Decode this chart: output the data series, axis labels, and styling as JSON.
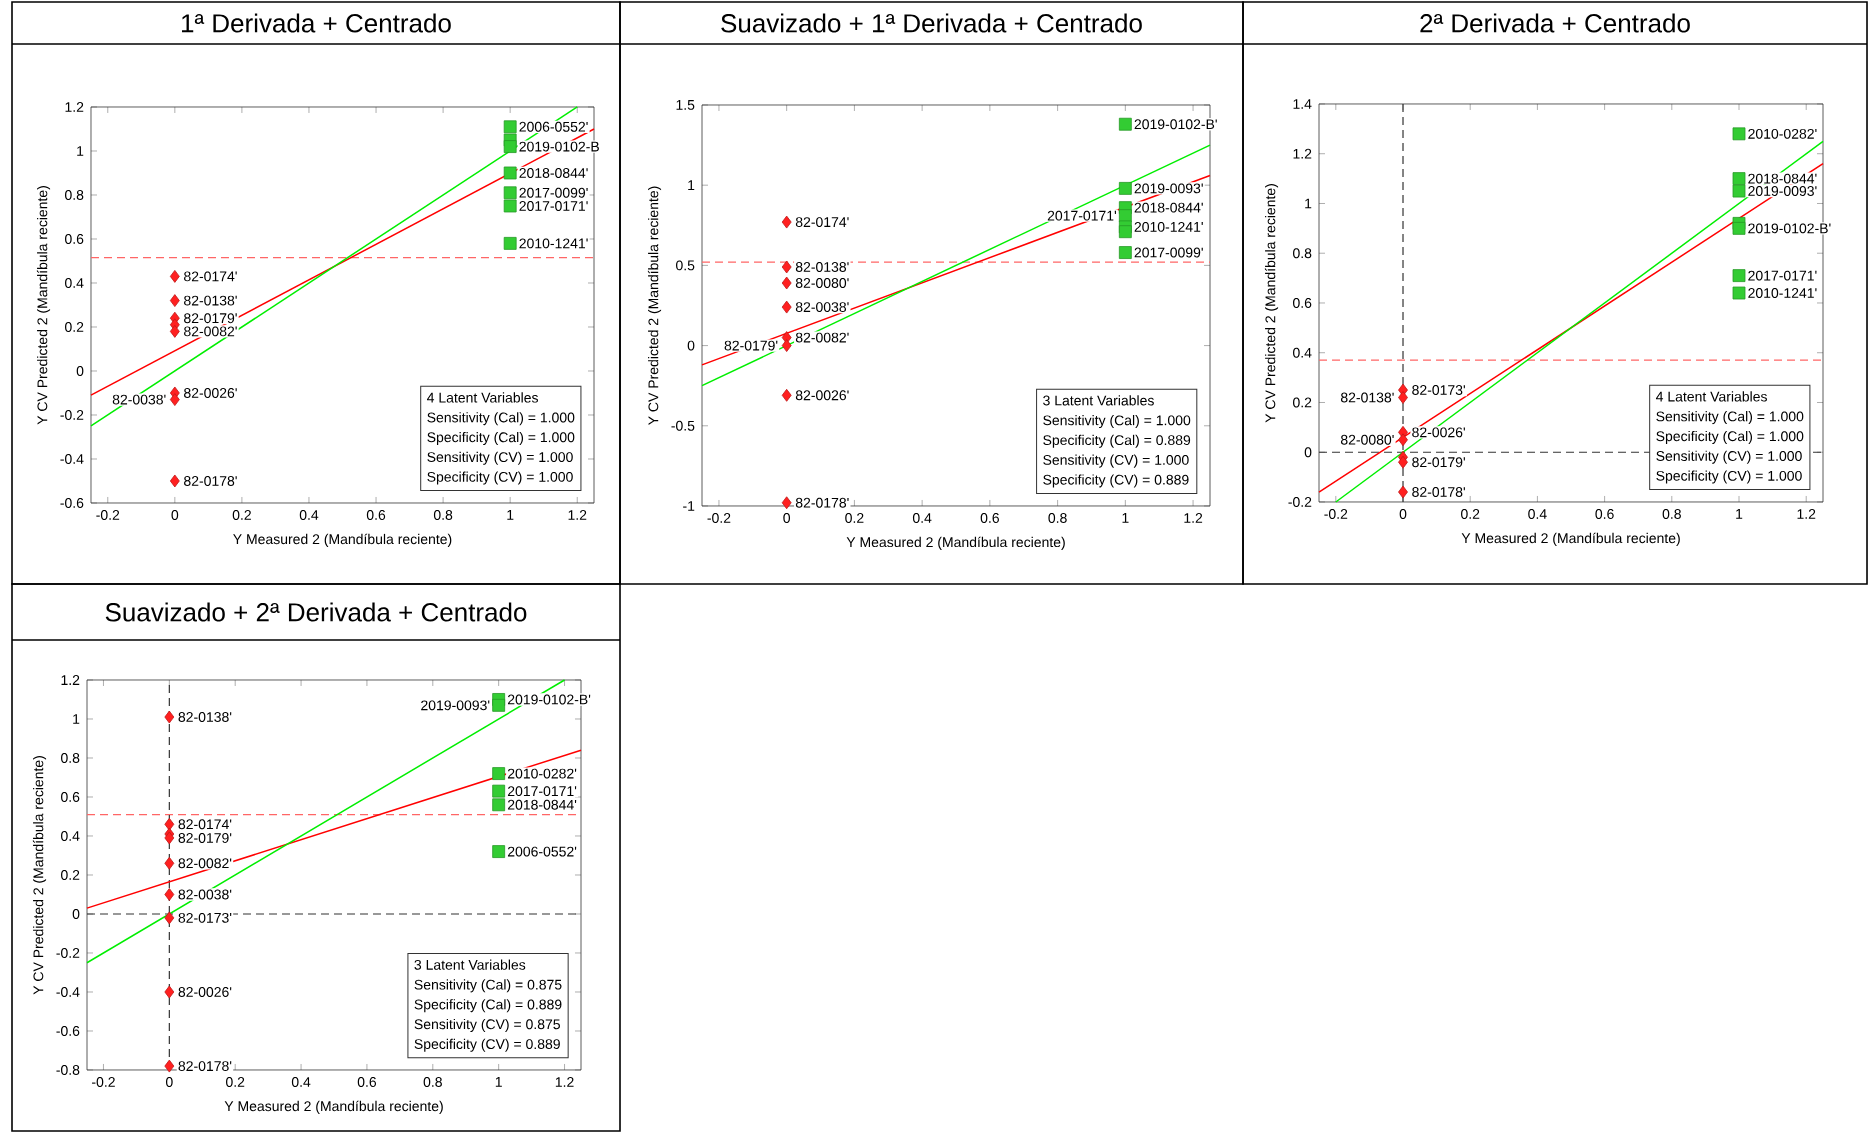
{
  "chart_data": [
    {
      "type": "scatter",
      "title": "1ª Derivada + Centrado",
      "xlabel": "Y Measured 2 (Mandíbula reciente)",
      "ylabel": "Y CV Predicted 2 (Mandíbula reciente)",
      "xlim": [
        -0.25,
        1.25
      ],
      "xticks": [
        -0.2,
        0,
        0.2,
        0.4,
        0.6,
        0.8,
        1,
        1.2
      ],
      "ylim": [
        -0.6,
        1.2
      ],
      "yticks": [
        -0.6,
        -0.4,
        -0.2,
        0,
        0.2,
        0.4,
        0.6,
        0.8,
        1,
        1.2
      ],
      "series": [
        {
          "type": "scatter",
          "marker": "diamond",
          "color": "#ff2020",
          "x": [
            0,
            0,
            0,
            0,
            0,
            0,
            0,
            0
          ],
          "values": [
            0.43,
            0.32,
            0.24,
            0.21,
            0.18,
            -0.1,
            -0.13,
            -0.5
          ],
          "value_labels": [
            "82-0174'",
            "82-0138'",
            "82-0179'",
            null,
            "82-0082'",
            "82-0026'",
            "82-0038'",
            "82-0178'"
          ]
        },
        {
          "type": "scatter",
          "marker": "square",
          "color": "#33cc33",
          "x": [
            1,
            1,
            1,
            1,
            1,
            1,
            1
          ],
          "values": [
            1.11,
            1.05,
            1.02,
            0.9,
            0.81,
            0.75,
            0.58
          ],
          "value_labels": [
            "2006-0552'",
            null,
            "2019-0102-B",
            "2018-0844'",
            "2017-0099'",
            "2017-0171'",
            "2010-1241'"
          ]
        },
        {
          "type": "line",
          "marker": "none",
          "line_style": "solid",
          "color": "#ff0000",
          "x": [
            -0.25,
            1.25
          ],
          "values": [
            -0.11,
            1.1
          ]
        },
        {
          "type": "line",
          "marker": "none",
          "line_style": "solid",
          "color": "#00ee00",
          "x": [
            -0.25,
            1.2
          ],
          "values": [
            -0.25,
            1.2
          ]
        }
      ],
      "ref_lines": [
        {
          "axis": "y",
          "value": 0.515,
          "color": "#ff6666",
          "line_style": "dashed"
        }
      ],
      "annotations": [
        "4 Latent Variables",
        "Sensitivity (Cal) = 1.000",
        "Specificity (Cal) = 1.000",
        "Sensitivity (CV) = 1.000",
        "Specificity (CV) = 1.000"
      ]
    },
    {
      "type": "scatter",
      "title": "Suavizado + 1ª Derivada + Centrado",
      "xlabel": "Y Measured 2 (Mandíbula reciente)",
      "ylabel": "Y CV Predicted 2 (Mandíbula reciente)",
      "xlim": [
        -0.25,
        1.25
      ],
      "xticks": [
        -0.2,
        0,
        0.2,
        0.4,
        0.6,
        0.8,
        1,
        1.2
      ],
      "ylim": [
        -1,
        1.5
      ],
      "yticks": [
        -1,
        -0.5,
        0,
        0.5,
        1,
        1.5
      ],
      "series": [
        {
          "type": "scatter",
          "marker": "diamond",
          "color": "#ff2020",
          "x": [
            0,
            0,
            0,
            0,
            0,
            0,
            0,
            0
          ],
          "values": [
            0.77,
            0.49,
            0.39,
            0.24,
            0.05,
            0.0,
            -0.31,
            -0.98
          ],
          "value_labels": [
            "82-0174'",
            "82-0138'",
            "82-0080'",
            "82-0038'",
            "82-0082'",
            "82-0179'",
            "82-0026'",
            "82-0178'"
          ]
        },
        {
          "type": "scatter",
          "marker": "square",
          "color": "#33cc33",
          "x": [
            1,
            1,
            1,
            1,
            1,
            1,
            1
          ],
          "values": [
            1.38,
            0.98,
            0.86,
            0.81,
            0.74,
            0.71,
            0.58
          ],
          "value_labels": [
            "2019-0102-B'",
            "2019-0093'",
            "2018-0844'",
            "2017-0171'",
            "2010-1241'",
            null,
            "2017-0099'"
          ]
        },
        {
          "type": "line",
          "marker": "none",
          "line_style": "solid",
          "color": "#ff0000",
          "x": [
            -0.25,
            1.25
          ],
          "values": [
            -0.12,
            1.06
          ]
        },
        {
          "type": "line",
          "marker": "none",
          "line_style": "solid",
          "color": "#00ee00",
          "x": [
            -0.25,
            1.25
          ],
          "values": [
            -0.25,
            1.25
          ]
        }
      ],
      "ref_lines": [
        {
          "axis": "y",
          "value": 0.52,
          "color": "#ff6666",
          "line_style": "dashed"
        }
      ],
      "annotations": [
        "3 Latent Variables",
        "Sensitivity (Cal) = 1.000",
        "Specificity (Cal) = 0.889",
        "Sensitivity (CV) = 1.000",
        "Specificity (CV) = 0.889"
      ]
    },
    {
      "type": "scatter",
      "title": "2ª Derivada + Centrado",
      "xlabel": "Y Measured 2 (Mandíbula reciente)",
      "ylabel": "Y CV Predicted 2 (Mandíbula reciente)",
      "xlim": [
        -0.25,
        1.25
      ],
      "xticks": [
        -0.2,
        0,
        0.2,
        0.4,
        0.6,
        0.8,
        1,
        1.2
      ],
      "ylim": [
        -0.2,
        1.4
      ],
      "yticks": [
        -0.2,
        0,
        0.2,
        0.4,
        0.6,
        0.8,
        1,
        1.2,
        1.4
      ],
      "series": [
        {
          "type": "scatter",
          "marker": "diamond",
          "color": "#ff2020",
          "x": [
            0,
            0,
            0,
            0,
            0,
            0,
            0
          ],
          "values": [
            0.25,
            0.22,
            0.08,
            0.05,
            -0.02,
            -0.04,
            -0.16
          ],
          "value_labels": [
            "82-0173'",
            "82-0138'",
            "82-0026'",
            "82-0080'",
            null,
            "82-0179'",
            "82-0178'"
          ]
        },
        {
          "type": "scatter",
          "marker": "square",
          "color": "#33cc33",
          "x": [
            1,
            1,
            1,
            1,
            1,
            1,
            1
          ],
          "values": [
            1.28,
            1.1,
            1.05,
            0.92,
            0.9,
            0.71,
            0.64
          ],
          "value_labels": [
            "2010-0282'",
            "2018-0844'",
            "2019-0093'",
            null,
            "2019-0102-B'",
            "2017-0171'",
            "2010-1241'"
          ]
        },
        {
          "type": "line",
          "marker": "none",
          "line_style": "solid",
          "color": "#ff0000",
          "x": [
            -0.25,
            1.25
          ],
          "values": [
            -0.16,
            1.16
          ]
        },
        {
          "type": "line",
          "marker": "none",
          "line_style": "solid",
          "color": "#00ee00",
          "x": [
            -0.2,
            1.25
          ],
          "values": [
            -0.2,
            1.25
          ]
        }
      ],
      "ref_lines": [
        {
          "axis": "y",
          "value": 0.37,
          "color": "#ff6666",
          "line_style": "dashed"
        },
        {
          "axis": "x",
          "value": 0,
          "color": "#333333",
          "line_style": "dashed"
        },
        {
          "axis": "y",
          "value": 0,
          "color": "#333333",
          "line_style": "dashed"
        }
      ],
      "annotations": [
        "4 Latent Variables",
        "Sensitivity (Cal) = 1.000",
        "Specificity (Cal) = 1.000",
        "Sensitivity (CV) = 1.000",
        "Specificity (CV) = 1.000"
      ]
    },
    {
      "type": "scatter",
      "title": "Suavizado + 2ª Derivada + Centrado",
      "xlabel": "Y Measured 2 (Mandíbula reciente)",
      "ylabel": "Y CV Predicted 2 (Mandíbula reciente)",
      "xlim": [
        -0.25,
        1.25
      ],
      "xticks": [
        -0.2,
        0,
        0.2,
        0.4,
        0.6,
        0.8,
        1,
        1.2
      ],
      "ylim": [
        -0.8,
        1.2
      ],
      "yticks": [
        -0.8,
        -0.6,
        -0.4,
        -0.2,
        0,
        0.2,
        0.4,
        0.6,
        0.8,
        1,
        1.2
      ],
      "series": [
        {
          "type": "scatter",
          "marker": "diamond",
          "color": "#ff2020",
          "x": [
            0,
            0,
            0,
            0,
            0,
            0,
            0,
            0,
            0
          ],
          "values": [
            1.01,
            0.46,
            0.41,
            0.39,
            0.26,
            0.1,
            -0.02,
            -0.4,
            -0.78
          ],
          "value_labels": [
            "82-0138'",
            "82-0174'",
            null,
            "82-0179'",
            "82-0082'",
            "82-0038'",
            "82-0173'",
            "82-0026'",
            "82-0178'"
          ]
        },
        {
          "type": "scatter",
          "marker": "square",
          "color": "#33cc33",
          "x": [
            1,
            1,
            1,
            1,
            1,
            1
          ],
          "values": [
            1.1,
            1.07,
            0.72,
            0.63,
            0.56,
            0.32
          ],
          "value_labels": [
            "2019-0102-B'",
            "2019-0093'",
            "2010-0282'",
            "2017-0171'",
            "2018-0844'",
            "2006-0552'"
          ]
        },
        {
          "type": "line",
          "marker": "none",
          "line_style": "solid",
          "color": "#ff0000",
          "x": [
            -0.25,
            1.25
          ],
          "values": [
            0.03,
            0.84
          ]
        },
        {
          "type": "line",
          "marker": "none",
          "line_style": "solid",
          "color": "#00ee00",
          "x": [
            -0.25,
            1.2
          ],
          "values": [
            -0.25,
            1.2
          ]
        }
      ],
      "ref_lines": [
        {
          "axis": "y",
          "value": 0.51,
          "color": "#ff6666",
          "line_style": "dashed"
        },
        {
          "axis": "x",
          "value": 0,
          "color": "#333333",
          "line_style": "dashed"
        },
        {
          "axis": "y",
          "value": 0,
          "color": "#333333",
          "line_style": "dashed"
        }
      ],
      "annotations": [
        "3 Latent Variables",
        "Sensitivity (Cal) = 0.875",
        "Specificity (Cal) = 0.889",
        "Sensitivity (CV) = 0.875",
        "Specificity (CV) = 0.889"
      ]
    }
  ]
}
